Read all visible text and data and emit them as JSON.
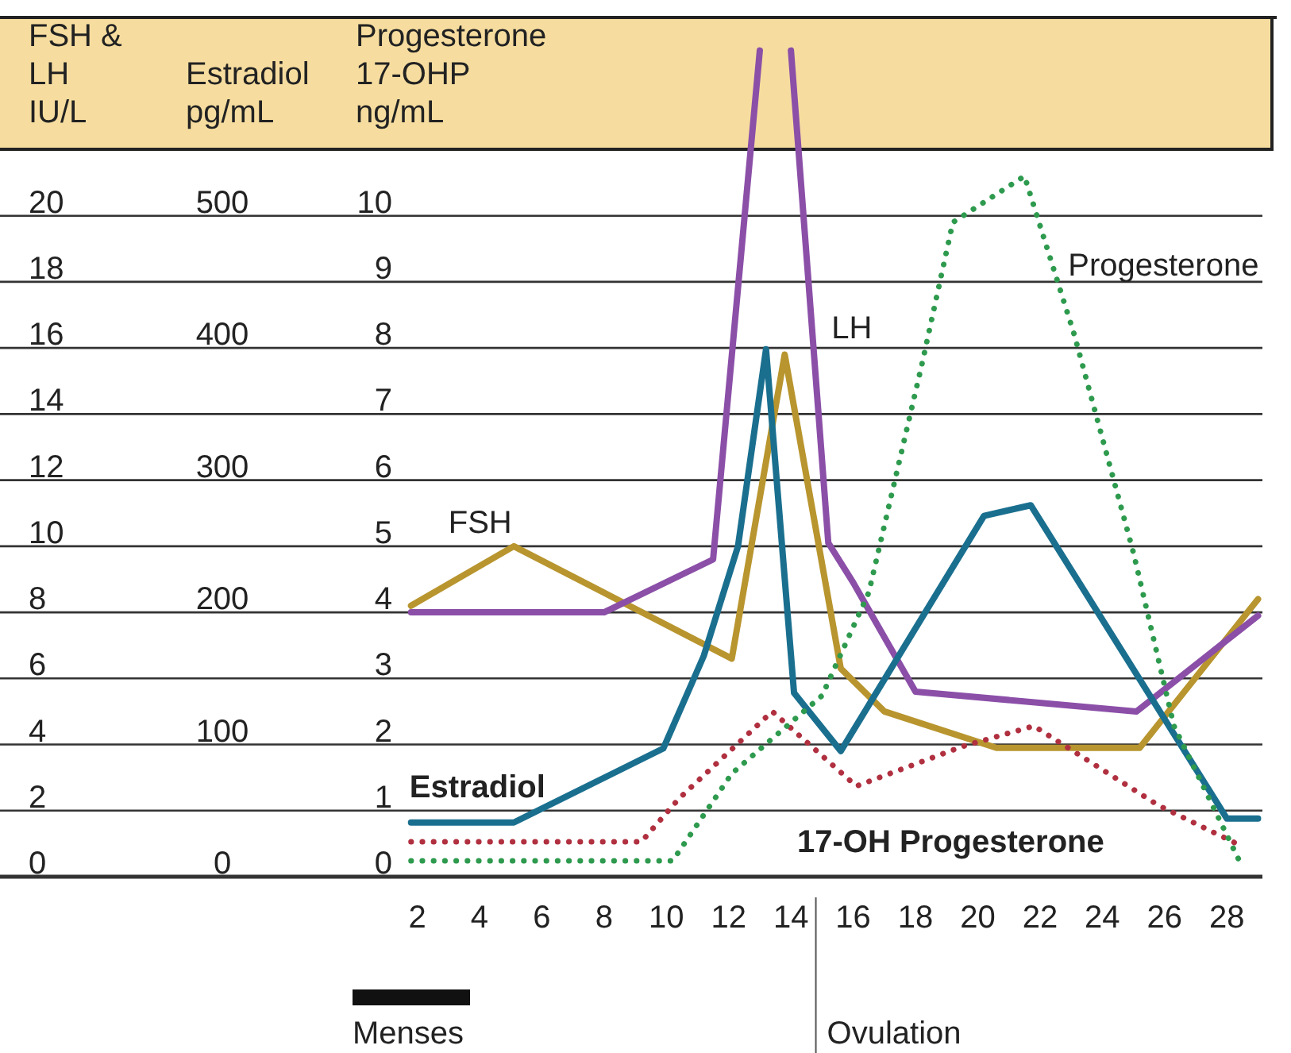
{
  "chart_data": {
    "type": "line",
    "ylabel": "FSH &\nLH\nIU/L",
    "y2label": "Estradiol\npg/mL",
    "y3label": "Progesterone\n17-OHP\nng/mL",
    "xlim": [
      -11.4,
      29.6
    ],
    "xticks": [
      2,
      4,
      6,
      8,
      10,
      12,
      14,
      16,
      18,
      20,
      22,
      24,
      26,
      28
    ],
    "ylim": [
      0,
      26
    ],
    "yticks": [
      0,
      2,
      4,
      6,
      8,
      10,
      12,
      14,
      16,
      18,
      20
    ],
    "y2lim": [
      0,
      650
    ],
    "y2ticks": [
      0,
      100,
      200,
      300,
      400,
      500
    ],
    "y3lim": [
      0,
      13
    ],
    "y3ticks": [
      0,
      1,
      2,
      3,
      4,
      5,
      6,
      7,
      8,
      9,
      10
    ],
    "grid": "y",
    "marker": "none",
    "annotations": [
      "Menses"
    ],
    "ref_lines": [
      {
        "axis": "x",
        "value": 14.8,
        "label": "Ovulation",
        "color": "#555555"
      }
    ],
    "series": [
      {
        "name": "FSH",
        "color": "#b8952e",
        "line_style": "solid",
        "x": [
          1.8,
          5.1,
          12.1,
          13.8,
          15.6,
          17,
          20.6,
          25.2,
          29
        ],
        "values": [
          8.2,
          10,
          6.6,
          15.8,
          6.3,
          5,
          3.9,
          3.9,
          8.4
        ]
      },
      {
        "name": "LH",
        "color": "#8b4fa8",
        "line_style": "solid",
        "x": [
          1.8,
          8,
          11.5,
          13,
          13.5,
          14,
          15.2,
          16,
          18,
          25.1,
          29
        ],
        "values": [
          8,
          8,
          9.6,
          25,
          null,
          25,
          10.1,
          8.9,
          5.6,
          5,
          7.9
        ]
      },
      {
        "name": "Estradiol",
        "color": "#1a6f8f",
        "line_style": "solid",
        "axis": "y2",
        "x": [
          1.8,
          5.1,
          9.9,
          11.2,
          12.3,
          13.2,
          14.1,
          15.6,
          20.2,
          21.7,
          28,
          29
        ],
        "values": [
          41,
          41,
          97,
          167,
          250,
          399,
          139,
          95,
          273,
          281,
          44,
          44
        ]
      },
      {
        "name": "17-OH Progesterone",
        "color": "#b03040",
        "line_style": "dotted",
        "axis": "y3",
        "x": [
          1.8,
          9.2,
          10.4,
          13.4,
          16.1,
          19.5,
          21.8,
          25.8,
          28.4
        ],
        "values": [
          0.53,
          0.53,
          1.18,
          2.5,
          1.37,
          1.97,
          2.28,
          1.08,
          0.48
        ]
      },
      {
        "name": "Progesterone",
        "color": "#2e9a4e",
        "line_style": "dotted",
        "axis": "y3",
        "x": [
          1.8,
          10.2,
          12.1,
          15,
          16.5,
          18.2,
          19.2,
          21.5,
          23.1,
          25,
          26.3,
          28.4
        ],
        "values": [
          0.24,
          0.24,
          1.56,
          2.74,
          4.3,
          7.74,
          9.9,
          10.6,
          8.2,
          4.9,
          2.28,
          0.24
        ]
      }
    ]
  }
}
